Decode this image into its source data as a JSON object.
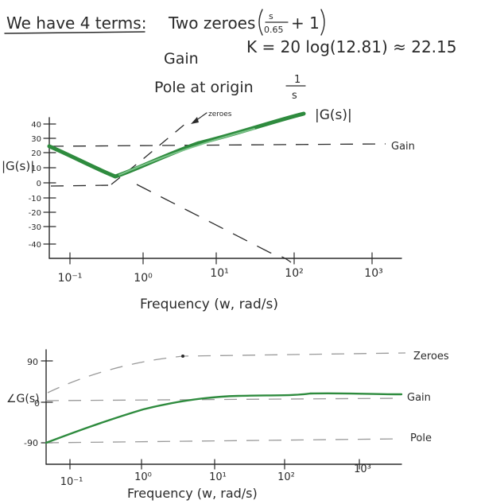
{
  "header": {
    "intro": "We have 4 terms:",
    "term_zeroes": "Two zeroes",
    "zero_num": "s",
    "zero_den": "0.65",
    "zero_tail": "+ 1",
    "term_gain": "Gain",
    "gain_formula": "K = 20 log(12.81) ≈ 22.15",
    "term_pole": "Pole at origin",
    "pole_num": "1",
    "pole_den": "s"
  },
  "magnitude_plot": {
    "ylabel": "|G(s)|",
    "curve_label": "|G(s)|",
    "zeroes_label": "zeroes",
    "gain_label": "Gain",
    "xlabel": "Frequency (w, rad/s)",
    "y_ticks": [
      "40",
      "30",
      "20",
      "10",
      "0",
      "-10",
      "-20",
      "-30",
      "-40"
    ],
    "x_ticks": [
      "10⁻¹",
      "10⁰",
      "10¹",
      "10²",
      "10³"
    ]
  },
  "phase_plot": {
    "ylabel": "∠G(s)",
    "y_ticks": [
      "90",
      "0",
      "-90"
    ],
    "zeroes_label": "Zeroes",
    "gain_label": "Gain",
    "pole_label": "Pole",
    "xlabel": "Frequency (w, rad/s)",
    "x_ticks": [
      "10⁻¹",
      "10⁰",
      "10¹",
      "10²",
      "10³"
    ]
  },
  "colors": {
    "ink": "#2b2b2b",
    "curve": "#2e8b3e",
    "dashes": "#9a9a9a"
  }
}
